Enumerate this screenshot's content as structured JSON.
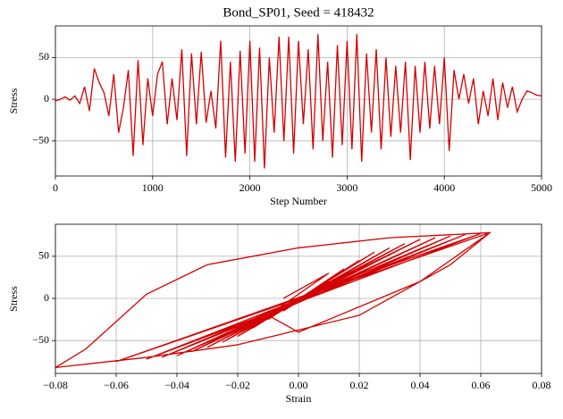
{
  "chart_data": [
    {
      "type": "line",
      "title": "Bond_SP01, Seed = 418432",
      "xlabel": "Step Number",
      "ylabel": "Stress",
      "x": [
        0,
        50,
        100,
        150,
        200,
        250,
        300,
        350,
        400,
        450,
        500,
        550,
        600,
        650,
        700,
        750,
        800,
        850,
        900,
        950,
        1000,
        1050,
        1100,
        1150,
        1200,
        1250,
        1300,
        1350,
        1400,
        1450,
        1500,
        1550,
        1600,
        1650,
        1700,
        1750,
        1800,
        1850,
        1900,
        1950,
        2000,
        2050,
        2100,
        2150,
        2200,
        2250,
        2300,
        2350,
        2400,
        2450,
        2500,
        2550,
        2600,
        2650,
        2700,
        2750,
        2800,
        2850,
        2900,
        2950,
        3000,
        3050,
        3100,
        3150,
        3200,
        3250,
        3300,
        3350,
        3400,
        3450,
        3500,
        3550,
        3600,
        3650,
        3700,
        3750,
        3800,
        3850,
        3900,
        3950,
        4000,
        4050,
        4100,
        4150,
        4200,
        4250,
        4300,
        4350,
        4400,
        4450,
        4500,
        4550,
        4600,
        4650,
        4700,
        4750,
        4800,
        4850,
        4900,
        4950,
        5000
      ],
      "values": [
        -2,
        0,
        3,
        -1,
        4,
        -5,
        15,
        -14,
        37,
        20,
        8,
        -20,
        30,
        -40,
        -10,
        35,
        -68,
        47,
        -55,
        25,
        -20,
        30,
        45,
        -30,
        25,
        -25,
        60,
        -68,
        55,
        -30,
        57,
        -28,
        10,
        -35,
        70,
        -70,
        45,
        -75,
        58,
        -65,
        70,
        -75,
        62,
        -83,
        50,
        -40,
        75,
        -50,
        75,
        -65,
        70,
        -30,
        60,
        -60,
        78,
        -50,
        45,
        -70,
        65,
        -55,
        70,
        -60,
        78,
        -75,
        55,
        -40,
        60,
        -60,
        50,
        -45,
        40,
        -40,
        45,
        -73,
        40,
        -40,
        45,
        -35,
        40,
        -30,
        50,
        -62,
        35,
        0,
        30,
        -5,
        25,
        -30,
        10,
        -20,
        25,
        -25,
        20,
        -10,
        15,
        -15,
        0,
        10,
        8,
        5,
        4
      ],
      "color": "#d40000",
      "xlim": [
        0,
        5000
      ],
      "xticks": [
        0,
        1000,
        2000,
        3000,
        4000,
        5000
      ],
      "ylim": [
        -92,
        88
      ],
      "yticks": [
        {
          "value": -50,
          "label": "−50"
        },
        0,
        50
      ],
      "grid": true
    },
    {
      "type": "line",
      "xlabel": "Strain",
      "ylabel": "Stress",
      "x": [
        0,
        0.01,
        -0.005,
        0.015,
        -0.01,
        0.02,
        -0.015,
        0.025,
        -0.02,
        0.03,
        -0.025,
        0.035,
        -0.03,
        0.04,
        -0.035,
        0.045,
        -0.04,
        0.05,
        -0.045,
        0.055,
        -0.05,
        0.06,
        -0.06,
        0.063,
        0.05,
        0.02,
        -0.02,
        -0.05,
        -0.08,
        -0.07,
        -0.05,
        -0.03,
        0,
        0.03,
        0.063,
        0.04,
        0,
        -0.01,
        0.01,
        -0.005
      ],
      "values": [
        0,
        20,
        -15,
        35,
        -25,
        45,
        -35,
        55,
        -45,
        60,
        -52,
        65,
        -58,
        70,
        -63,
        72,
        -68,
        74,
        -70,
        76,
        -72,
        77,
        -75,
        78,
        40,
        -20,
        -55,
        -70,
        -82,
        -60,
        5,
        40,
        60,
        72,
        78,
        20,
        -40,
        -20,
        30,
        0
      ],
      "color": "#d40000",
      "xlim": [
        -0.08,
        0.08
      ],
      "xticks": [
        {
          "value": -0.08,
          "label": "−0.08"
        },
        {
          "value": -0.06,
          "label": "−0.06"
        },
        {
          "value": -0.04,
          "label": "−0.04"
        },
        {
          "value": -0.02,
          "label": "−0.02"
        },
        {
          "value": 0,
          "label": "0.00"
        },
        {
          "value": 0.02,
          "label": "0.02"
        },
        {
          "value": 0.04,
          "label": "0.04"
        },
        {
          "value": 0.06,
          "label": "0.06"
        },
        {
          "value": 0.08,
          "label": "0.08"
        }
      ],
      "ylim": [
        -89,
        88
      ],
      "yticks": [
        {
          "value": -50,
          "label": "−50"
        },
        0,
        50
      ],
      "grid": true
    }
  ]
}
